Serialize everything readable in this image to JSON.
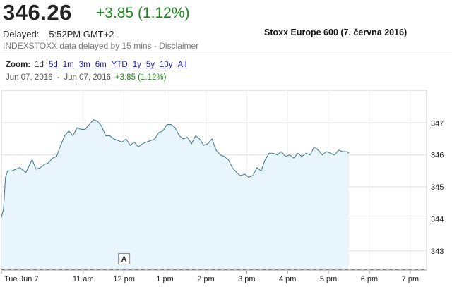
{
  "quote": {
    "price": "346.26",
    "change": "+3.85 (1.12%)",
    "delayed_label": "Delayed:",
    "delayed_time": "5:52PM GMT+2",
    "source": "INDEXSTOXX data delayed by 15 mins - Disclaimer"
  },
  "caption": "Stoxx Europe 600 (7. června 2016)",
  "zoom": {
    "label": "Zoom:",
    "options": [
      "1d",
      "5d",
      "1m",
      "3m",
      "6m",
      "YTD",
      "1y",
      "5y",
      "10y",
      "All"
    ],
    "active": "1d"
  },
  "range": {
    "start": "Jun 07, 2016",
    "separator": "-",
    "end": "Jun 07, 2016",
    "change": "+3.85 (1.12%)"
  },
  "annotation": {
    "label": "A",
    "x": 12.0
  },
  "colors": {
    "line": "#4a7f8c",
    "fill": "#e8f5fc",
    "positive": "#1a8a1a",
    "link": "#1a1aa6",
    "grid": "#dddddd"
  },
  "chart_data": {
    "type": "area",
    "title": "",
    "xlabel": "",
    "ylabel": "",
    "x_ticks": [
      {
        "x": 9.0,
        "label": "Tue Jun 7"
      },
      {
        "x": 11.0,
        "label": "11 am"
      },
      {
        "x": 12.0,
        "label": "12 pm"
      },
      {
        "x": 13.0,
        "label": "1 pm"
      },
      {
        "x": 14.0,
        "label": "2 pm"
      },
      {
        "x": 15.0,
        "label": "3 pm"
      },
      {
        "x": 16.0,
        "label": "4 pm"
      },
      {
        "x": 17.0,
        "label": "5 pm"
      },
      {
        "x": 18.0,
        "label": "6 pm"
      },
      {
        "x": 19.0,
        "label": "7 pm"
      }
    ],
    "y_ticks": [
      343,
      344,
      345,
      346,
      347
    ],
    "xlim": [
      9.0,
      19.4
    ],
    "ylim": [
      342.4,
      347.8
    ],
    "baseline": 342.41,
    "grid": true,
    "series": [
      {
        "x": [
          9.0,
          9.05,
          9.1,
          9.15,
          9.25,
          9.35,
          9.45,
          9.6,
          9.75,
          9.85,
          9.95,
          10.05,
          10.15,
          10.25,
          10.35,
          10.45,
          10.55,
          10.65,
          10.75,
          10.85,
          10.95,
          11.05,
          11.15,
          11.25,
          11.35,
          11.45,
          11.55,
          11.65,
          11.75,
          11.85,
          11.95,
          12.05,
          12.15,
          12.25,
          12.35,
          12.45,
          12.55,
          12.65,
          12.75,
          12.85,
          12.95,
          13.05,
          13.15,
          13.25,
          13.35,
          13.45,
          13.55,
          13.65,
          13.75,
          13.85,
          13.95,
          14.05,
          14.15,
          14.25,
          14.35,
          14.45,
          14.55,
          14.65,
          14.75,
          14.85,
          14.95,
          15.05,
          15.15,
          15.25,
          15.35,
          15.45,
          15.55,
          15.65,
          15.75,
          15.85,
          15.95,
          16.05,
          16.15,
          16.25,
          16.35,
          16.45,
          16.55,
          16.65,
          16.75,
          16.85,
          16.95,
          17.05,
          17.15,
          17.25,
          17.35,
          17.45,
          17.5
        ],
        "values": [
          344.05,
          344.3,
          345.3,
          345.5,
          345.5,
          345.55,
          345.6,
          345.45,
          345.85,
          345.55,
          345.6,
          345.7,
          345.75,
          345.9,
          345.95,
          346.3,
          346.6,
          346.75,
          346.6,
          346.85,
          346.8,
          346.8,
          346.95,
          347.1,
          347.05,
          346.9,
          346.6,
          346.6,
          346.5,
          346.45,
          346.4,
          346.5,
          346.3,
          346.4,
          346.25,
          346.35,
          346.4,
          346.45,
          346.5,
          346.7,
          346.75,
          346.95,
          346.95,
          346.85,
          346.6,
          346.5,
          346.55,
          346.35,
          346.6,
          346.5,
          346.3,
          346.35,
          346.5,
          346.15,
          346.0,
          345.95,
          345.85,
          345.6,
          345.45,
          345.35,
          345.4,
          345.3,
          345.35,
          345.6,
          345.5,
          345.85,
          346.05,
          346.05,
          346.0,
          346.1,
          345.95,
          346.0,
          345.9,
          346.05,
          345.95,
          346.05,
          346.0,
          346.25,
          346.15,
          346.0,
          346.1,
          346.05,
          346.0,
          346.15,
          346.1,
          346.1,
          346.05
        ]
      }
    ]
  }
}
